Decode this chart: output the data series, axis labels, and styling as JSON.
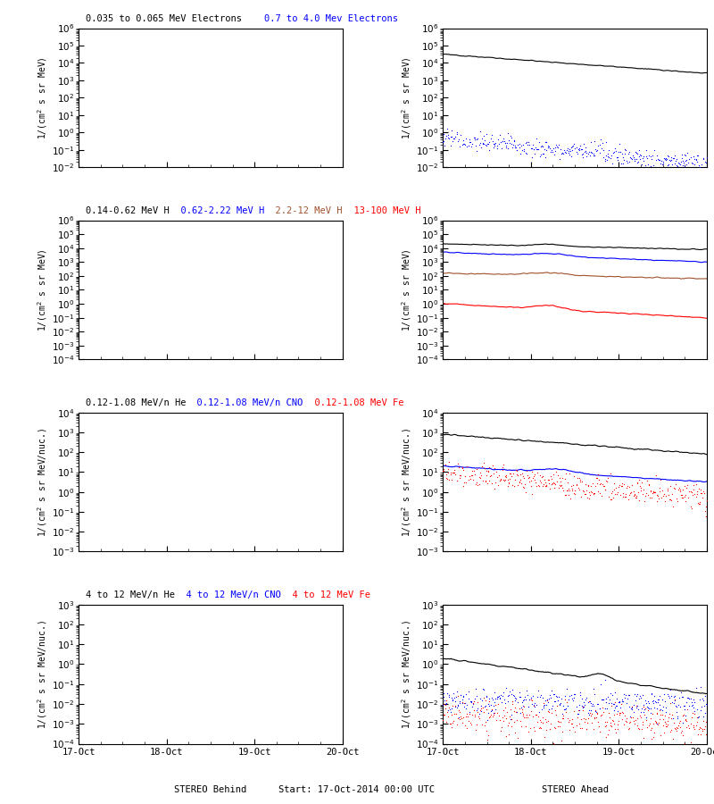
{
  "fig_width": 8.0,
  "fig_height": 9.0,
  "dpi": 100,
  "background_color": "#ffffff",
  "row_titles": [
    [
      {
        "text": "0.035 to 0.065 MeV Electrons",
        "color": "#000000"
      },
      {
        "text": "    0.7 to 4.0 Mev Electrons",
        "color": "#0000ff"
      }
    ],
    [
      {
        "text": "0.14-0.62 MeV H",
        "color": "#000000"
      },
      {
        "text": "  0.62-2.22 MeV H",
        "color": "#0000ff"
      },
      {
        "text": "  2.2-12 MeV H",
        "color": "#a0522d"
      },
      {
        "text": "  13-100 MeV H",
        "color": "#ff0000"
      }
    ],
    [
      {
        "text": "0.12-1.08 MeV/n He",
        "color": "#000000"
      },
      {
        "text": "  0.12-1.08 MeV/n CNO",
        "color": "#0000ff"
      },
      {
        "text": "  0.12-1.08 MeV Fe",
        "color": "#ff0000"
      }
    ],
    [
      {
        "text": "4 to 12 MeV/n He",
        "color": "#000000"
      },
      {
        "text": "  4 to 12 MeV/n CNO",
        "color": "#0000ff"
      },
      {
        "text": "  4 to 12 MeV Fe",
        "color": "#ff0000"
      }
    ]
  ],
  "panel_configs": [
    {
      "ylabel": "1/(cm^2 s sr MeV)",
      "ylim_log": [
        -2,
        6
      ],
      "ytick_exp": [
        -2,
        -1,
        0,
        1,
        2,
        3,
        4,
        5,
        6
      ]
    },
    {
      "ylabel": "1/(cm^2 s sr MeV)",
      "ylim_log": [
        -4,
        6
      ],
      "ytick_exp": [
        -4,
        -3,
        -2,
        -1,
        0,
        1,
        2,
        3,
        4,
        5,
        6
      ]
    },
    {
      "ylabel": "1/(cm^2 s sr MeV/nuc.)",
      "ylim_log": [
        -3,
        4
      ],
      "ytick_exp": [
        -3,
        -2,
        -1,
        0,
        1,
        2,
        3,
        4
      ]
    },
    {
      "ylabel": "1/(cm^2 s sr MeV/nuc.)",
      "ylim_log": [
        -4,
        3
      ],
      "ytick_exp": [
        -4,
        -3,
        -2,
        -1,
        0,
        1,
        2,
        3
      ]
    }
  ],
  "x_tick_labels": [
    "17-Oct",
    "18-Oct",
    "19-Oct",
    "20-Oct"
  ],
  "label_left": "STEREO Behind",
  "label_center": "Start: 17-Oct-2014 00:00 UTC",
  "label_right": "STEREO Ahead"
}
